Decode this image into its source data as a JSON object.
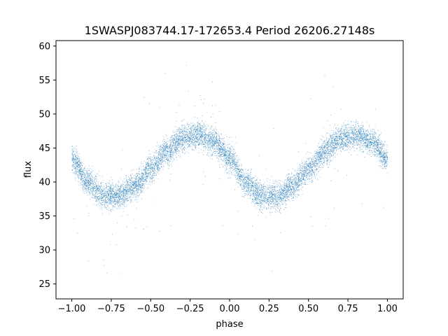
{
  "chart_data": {
    "type": "scatter",
    "title": "1SWASPJ083744.17-172653.4 Period 26206.27148s",
    "xlabel": "phase",
    "ylabel": "flux",
    "xlim": [
      -1.1,
      1.1
    ],
    "ylim": [
      22.8,
      60.8
    ],
    "xticks": [
      -1.0,
      -0.75,
      -0.5,
      -0.25,
      0.0,
      0.25,
      0.5,
      0.75,
      1.0
    ],
    "xtick_labels": [
      "−1.00",
      "−0.75",
      "−0.50",
      "−0.25",
      "0.00",
      "0.25",
      "0.50",
      "0.75",
      "1.00"
    ],
    "yticks": [
      25,
      30,
      35,
      40,
      45,
      50,
      55,
      60
    ],
    "ytick_labels": [
      "25",
      "30",
      "35",
      "40",
      "45",
      "50",
      "55",
      "60"
    ],
    "grid": false,
    "legend": "none",
    "color": "#1f77b4",
    "series": [
      {
        "phase_range": [
          -1.0,
          1.0
        ],
        "trend": {
          "x": [
            -1.0,
            -0.9,
            -0.8,
            -0.7,
            -0.6,
            -0.5,
            -0.4,
            -0.3,
            -0.2,
            -0.1,
            0.0,
            0.1,
            0.2,
            0.3,
            0.4,
            0.5,
            0.6,
            0.7,
            0.8,
            0.9,
            1.0
          ],
          "y": [
            43.5,
            40.0,
            38.0,
            38.0,
            39.5,
            42.0,
            44.5,
            46.5,
            47.0,
            46.0,
            43.5,
            40.0,
            38.0,
            38.0,
            39.5,
            42.0,
            44.5,
            46.5,
            47.0,
            46.0,
            43.5
          ]
        },
        "scatter_band_halfwidth": 2.5,
        "outlier_range": [
          24.5,
          59.0
        ]
      }
    ]
  }
}
